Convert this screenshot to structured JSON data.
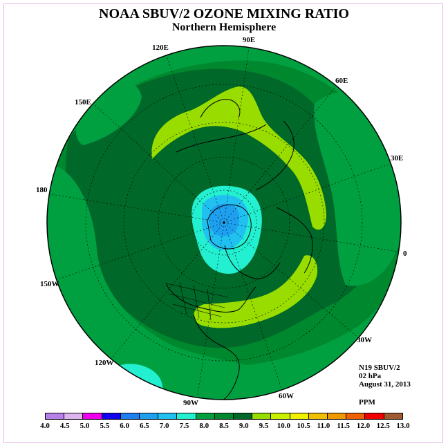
{
  "title": "NOAA SBUV/2 OZONE MIXING RATIO",
  "subtitle": "Northern Hemisphere",
  "meridian_labels": [
    "90E",
    "60E",
    "30E",
    "0",
    "30W",
    "60W",
    "90W",
    "120W",
    "150W",
    "180",
    "150E",
    "120E"
  ],
  "info": {
    "satellite": "N19 SBUV/2",
    "level": "02 hPa",
    "date": "August 31, 2013",
    "units": "PPM"
  },
  "colorbar": {
    "colors": [
      "#b77fe8",
      "#dcb4f0",
      "#ee00ee",
      "#1000ee",
      "#1e7ff0",
      "#1ea0f0",
      "#20c0f0",
      "#22f0d0",
      "#00a040",
      "#00882e",
      "#006828",
      "#98dc00",
      "#c8f000",
      "#f0f000",
      "#f0c000",
      "#f09800",
      "#f06000",
      "#f00000",
      "#a05a32"
    ],
    "ticks": [
      "4.0",
      "4.5",
      "5.0",
      "5.5",
      "6.0",
      "6.5",
      "7.0",
      "7.5",
      "8.0",
      "8.5",
      "9.0",
      "9.5",
      "10.0",
      "10.5",
      "11.0",
      "11.5",
      "12.0",
      "12.5",
      "13.0"
    ]
  },
  "field_colors": {
    "ocean_bg": "#00a040",
    "dark_band": "#006828",
    "mid_band": "#00882e",
    "high_band": "#98dc00",
    "polar_low": "#22f0d0",
    "polar_core": "#20c0f0",
    "polar_deep": "#1ea0f0"
  }
}
